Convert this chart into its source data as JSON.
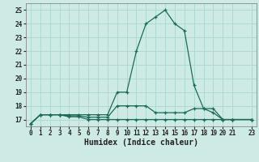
{
  "xlabel": "Humidex (Indice chaleur)",
  "xlim": [
    -0.5,
    23.5
  ],
  "ylim": [
    16.5,
    25.5
  ],
  "yticks": [
    17,
    18,
    19,
    20,
    21,
    22,
    23,
    24,
    25
  ],
  "xticks": [
    0,
    1,
    2,
    3,
    4,
    5,
    6,
    7,
    8,
    9,
    10,
    11,
    12,
    13,
    14,
    15,
    16,
    17,
    18,
    19,
    20,
    21,
    23
  ],
  "bg_color": "#ceeae4",
  "grid_color": "#a8d8d0",
  "line_color": "#1a6b5a",
  "hours": [
    0,
    1,
    2,
    3,
    4,
    5,
    6,
    7,
    8,
    9,
    10,
    11,
    12,
    13,
    14,
    15,
    16,
    17,
    18,
    19,
    20,
    21,
    23
  ],
  "max_values": [
    16.7,
    17.35,
    17.35,
    17.35,
    17.35,
    17.35,
    17.35,
    17.35,
    17.35,
    19.0,
    19.0,
    22.0,
    24.0,
    24.5,
    25.0,
    24.0,
    23.5,
    19.5,
    17.8,
    17.8,
    17.0,
    17.0,
    17.0
  ],
  "min_values": [
    16.7,
    17.35,
    17.35,
    17.35,
    17.2,
    17.2,
    17.0,
    17.0,
    17.0,
    17.0,
    17.0,
    17.0,
    17.0,
    17.0,
    17.0,
    17.0,
    17.0,
    17.0,
    17.0,
    17.0,
    17.0,
    17.0,
    17.0
  ],
  "mean_values": [
    16.7,
    17.35,
    17.35,
    17.35,
    17.27,
    17.27,
    17.17,
    17.17,
    17.17,
    18.0,
    18.0,
    18.0,
    18.0,
    17.5,
    17.5,
    17.5,
    17.5,
    17.8,
    17.8,
    17.5,
    17.0,
    17.0,
    17.0
  ],
  "xlabel_fontsize": 7,
  "tick_fontsize": 5.5
}
